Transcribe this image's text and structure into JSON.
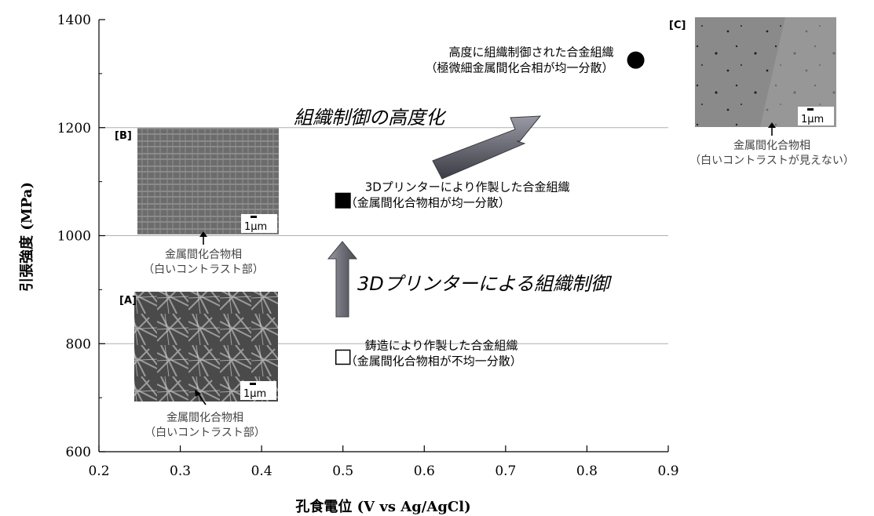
{
  "chart_data": {
    "type": "scatter",
    "xlabel": "孔食電位 (V vs Ag/AgCl)",
    "ylabel": "引張強度 (MPa)",
    "xlim": [
      0.2,
      0.9
    ],
    "ylim": [
      600,
      1400
    ],
    "x_ticks": [
      "0.2",
      "0.3",
      "0.4",
      "0.5",
      "0.6",
      "0.7",
      "0.8",
      "0.9"
    ],
    "y_ticks": [
      "600",
      "800",
      "1000",
      "1200",
      "1400"
    ],
    "grid": "horizontal",
    "points": [
      {
        "x": 0.5,
        "y": 775,
        "marker": "open-square",
        "label": [
          "鋳造により作製した合金組織",
          "（金属間化合物相が不均一分散）"
        ]
      },
      {
        "x": 0.5,
        "y": 1065,
        "marker": "filled-square",
        "label": [
          "3Dプリンターにより作製した合金組織",
          "（金属間化合物相が均一分散）"
        ]
      },
      {
        "x": 0.86,
        "y": 1325,
        "marker": "filled-circle",
        "label": [
          "高度に組織制御された合金組織",
          "（極微細金属間化合相が均一分散）"
        ]
      }
    ],
    "annotations": {
      "arrow_up": "3Dプリンターによる組織制御",
      "arrow_diag": "組織制御の高度化"
    }
  },
  "insets": [
    {
      "tag": "[A]",
      "scale": "1μm",
      "caption": [
        "金属間化合物相",
        "（白いコントラスト部）"
      ]
    },
    {
      "tag": "[B]",
      "scale": "1μm",
      "caption": [
        "金属間化合物相",
        "（白いコントラスト部）"
      ]
    },
    {
      "tag": "[C]",
      "scale": "1μm",
      "caption": [
        "金属間化合物相",
        "（白いコントラストが見えない）"
      ]
    }
  ],
  "colors": {
    "axis": "#000000",
    "grid": "#b0b0b0",
    "arrow": "#6e6e78",
    "micrograph_bg": "#6a6a6a"
  }
}
